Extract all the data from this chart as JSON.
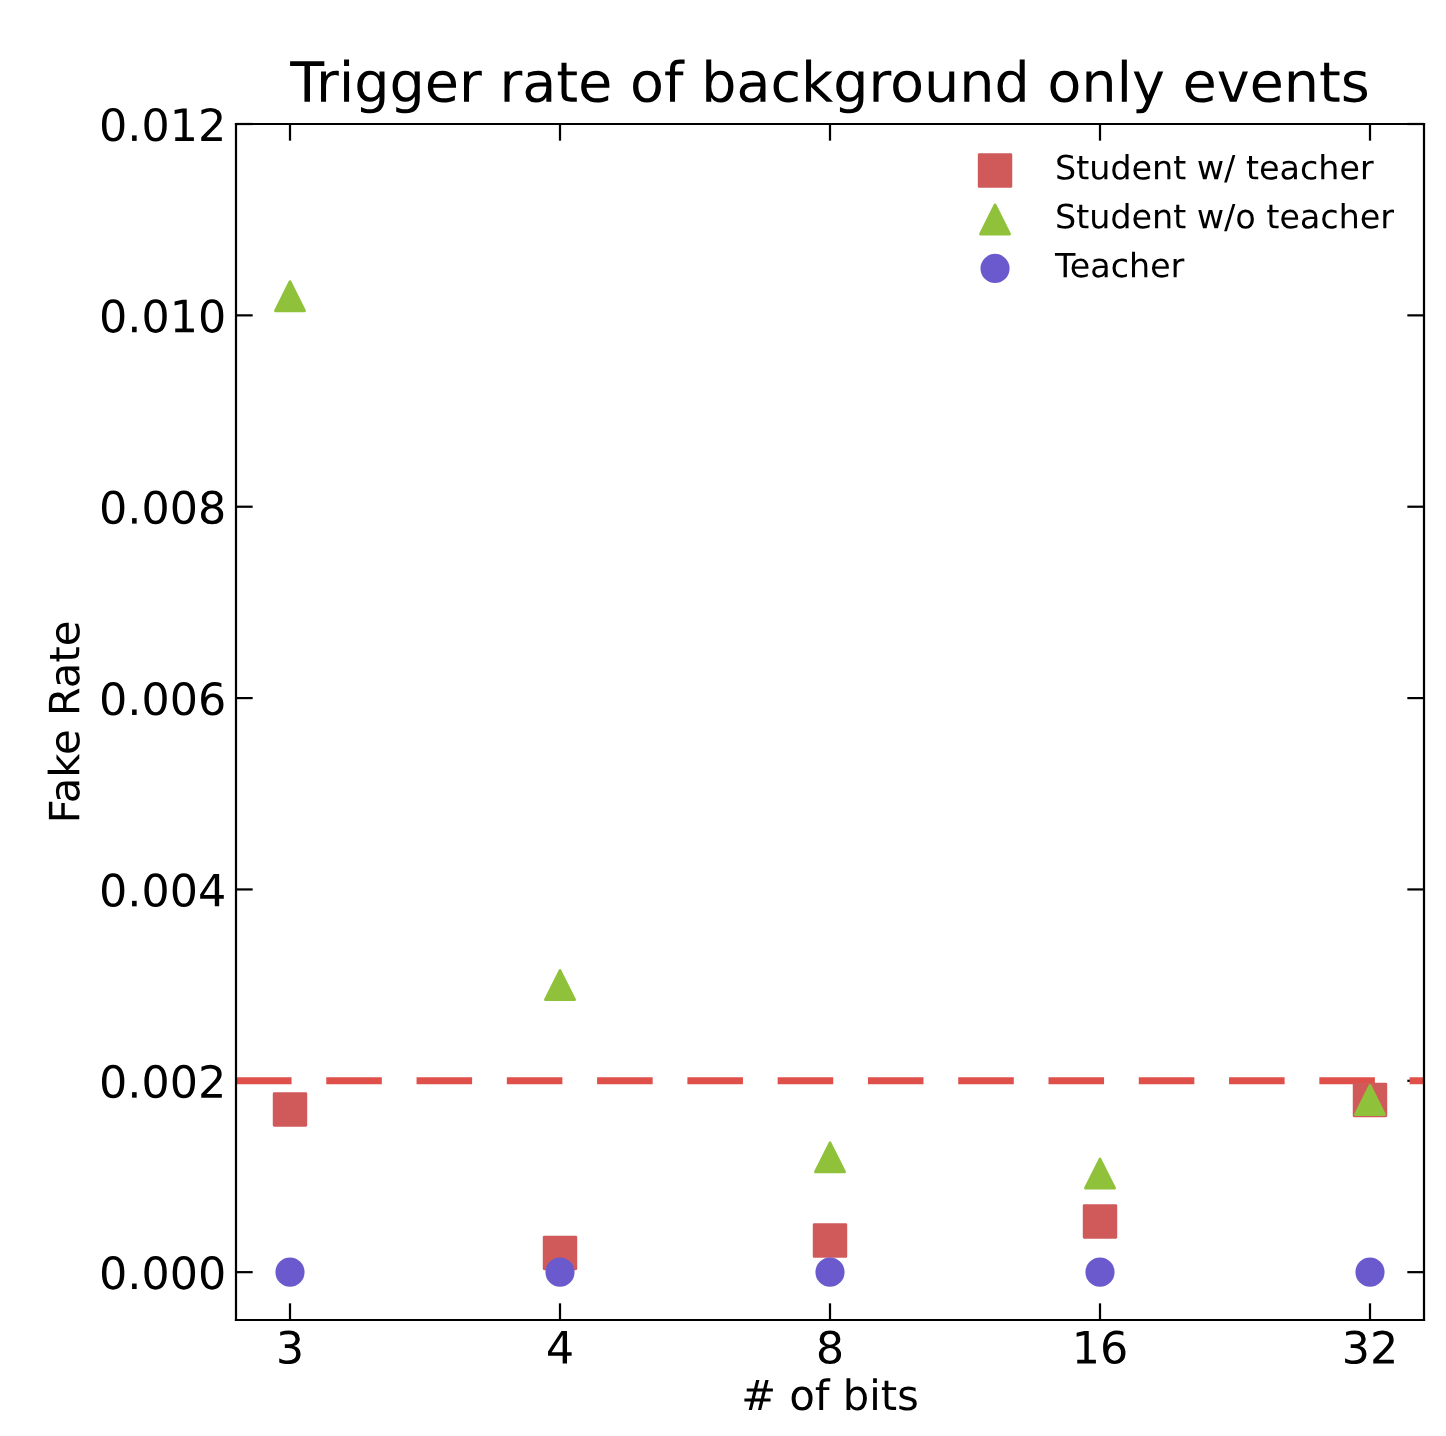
{
  "chart_data": {
    "type": "scatter",
    "title": "Trigger rate of background only events",
    "xlabel": "# of bits",
    "ylabel": "Fake Rate",
    "categories": [
      "3",
      "4",
      "8",
      "16",
      "32"
    ],
    "series": [
      {
        "name": "Student w/ teacher",
        "color": "#d05a5a",
        "marker": "square",
        "values": [
          0.0017,
          0.0002,
          0.00033,
          0.00053,
          0.0018
        ]
      },
      {
        "name": "Student w/o teacher",
        "color": "#8fc23a",
        "marker": "triangle",
        "values": [
          0.0102,
          0.003,
          0.0012,
          0.00103,
          0.0018
        ]
      },
      {
        "name": "Teacher",
        "color": "#6a5acd",
        "marker": "circle",
        "values": [
          0.0,
          0.0,
          0.0,
          0.0,
          0.0
        ]
      }
    ],
    "ylim": [
      -0.0005,
      0.012
    ],
    "yticks": [
      {
        "value": 0,
        "label": "0.000"
      },
      {
        "value": 0.002,
        "label": "0.002"
      },
      {
        "value": 0.004,
        "label": "0.004"
      },
      {
        "value": 0.006,
        "label": "0.006"
      },
      {
        "value": 0.008,
        "label": "0.008"
      },
      {
        "value": 0.01,
        "label": "0.010"
      },
      {
        "value": 0.012,
        "label": "0.012"
      }
    ],
    "ref_lines": [
      {
        "axis": "y",
        "value": 0.002,
        "color": "#e0504a",
        "line_style": "dashed"
      }
    ],
    "grid": false,
    "legend": "top right"
  }
}
